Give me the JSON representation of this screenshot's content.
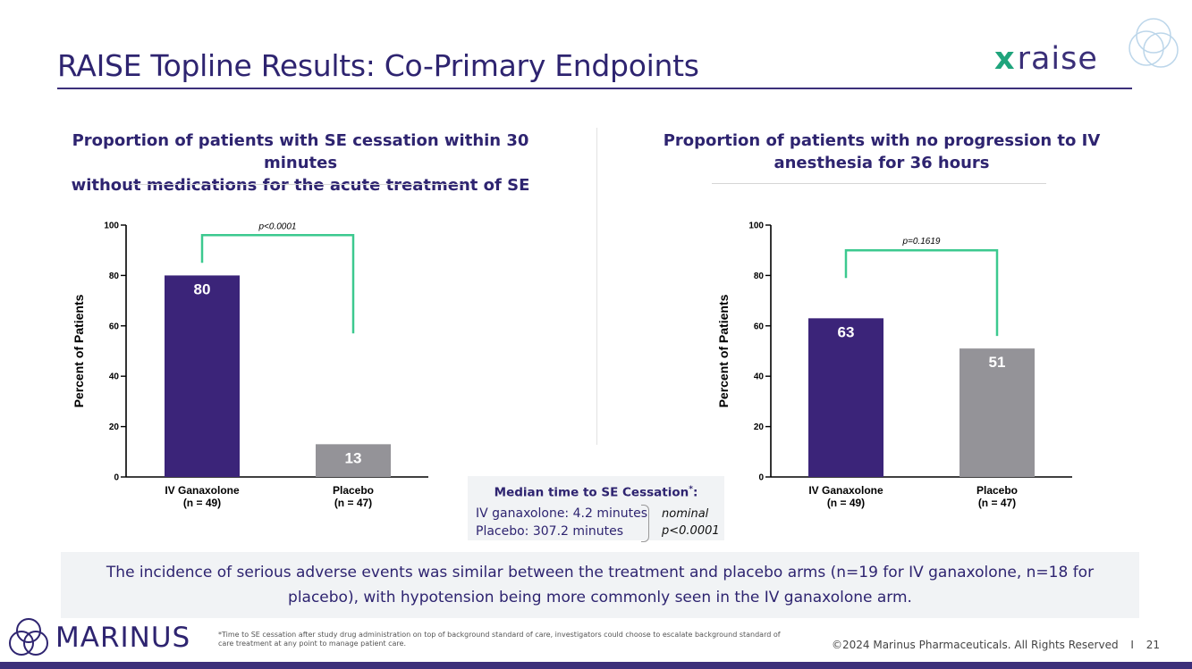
{
  "slide": {
    "title": "RAISE Topline Results: Co-Primary Endpoints",
    "logo_word": "raise",
    "logo_mark": "x",
    "median_box": {
      "title": "Median time to SE Cessation",
      "title_marker": "*",
      "line1": "IV ganaxolone: 4.2 minutes",
      "line2": "Placebo: 307.2 minutes",
      "nominal": "nominal",
      "p_value": "p<0.0001"
    },
    "statement": "The incidence of serious adverse events was similar between the treatment and placebo arms (n=19 for IV ganaxolone, n=18 for placebo), with hypotension being more commonly seen in the IV ganaxolone arm.",
    "company": "MARINUS",
    "footnote": "*Time to SE cessation after study drug administration on top of background standard of care, investigators could choose to escalate background standard of care treatment at any point to manage patient care.",
    "copyright": "©2024 Marinus Pharmaceuticals. All Rights Reserved",
    "separator": "I",
    "page_number": "21",
    "colors": {
      "purple": "#3b2479",
      "gray": "#949398",
      "bracket": "#3cc98f",
      "title": "#2e2470"
    }
  },
  "chart_data": [
    {
      "type": "bar",
      "title": "Proportion of patients with SE cessation within 30 minutes without medications for the acute treatment of SE",
      "title_lines": [
        "Proportion of patients with SE cessation within 30 minutes",
        "without medications for the acute treatment of SE"
      ],
      "categories": [
        "IV Ganaxolone",
        "Placebo"
      ],
      "category_n": [
        "(n = 49)",
        "(n = 47)"
      ],
      "values": [
        80,
        13
      ],
      "ylabel": "Percent of Patients",
      "ylim": [
        0,
        100
      ],
      "yticks": [
        0,
        20,
        40,
        60,
        80,
        100
      ],
      "p_value": "p<0.0001",
      "bracket_left_drop": 85,
      "bracket_right_drop": 57,
      "bracket_top": 96
    },
    {
      "type": "bar",
      "title": "Proportion of patients with no progression to IV anesthesia for 36 hours",
      "title_lines": [
        "Proportion of patients with no progression to IV",
        "anesthesia for 36 hours"
      ],
      "categories": [
        "IV Ganaxolone",
        "Placebo"
      ],
      "category_n": [
        "(n = 49)",
        "(n = 47)"
      ],
      "values": [
        63,
        51
      ],
      "ylabel": "Percent of Patients",
      "ylim": [
        0,
        100
      ],
      "yticks": [
        0,
        20,
        40,
        60,
        80,
        100
      ],
      "p_value": "p=0.1619",
      "bracket_left_drop": 79,
      "bracket_right_drop": 56,
      "bracket_top": 90
    }
  ]
}
